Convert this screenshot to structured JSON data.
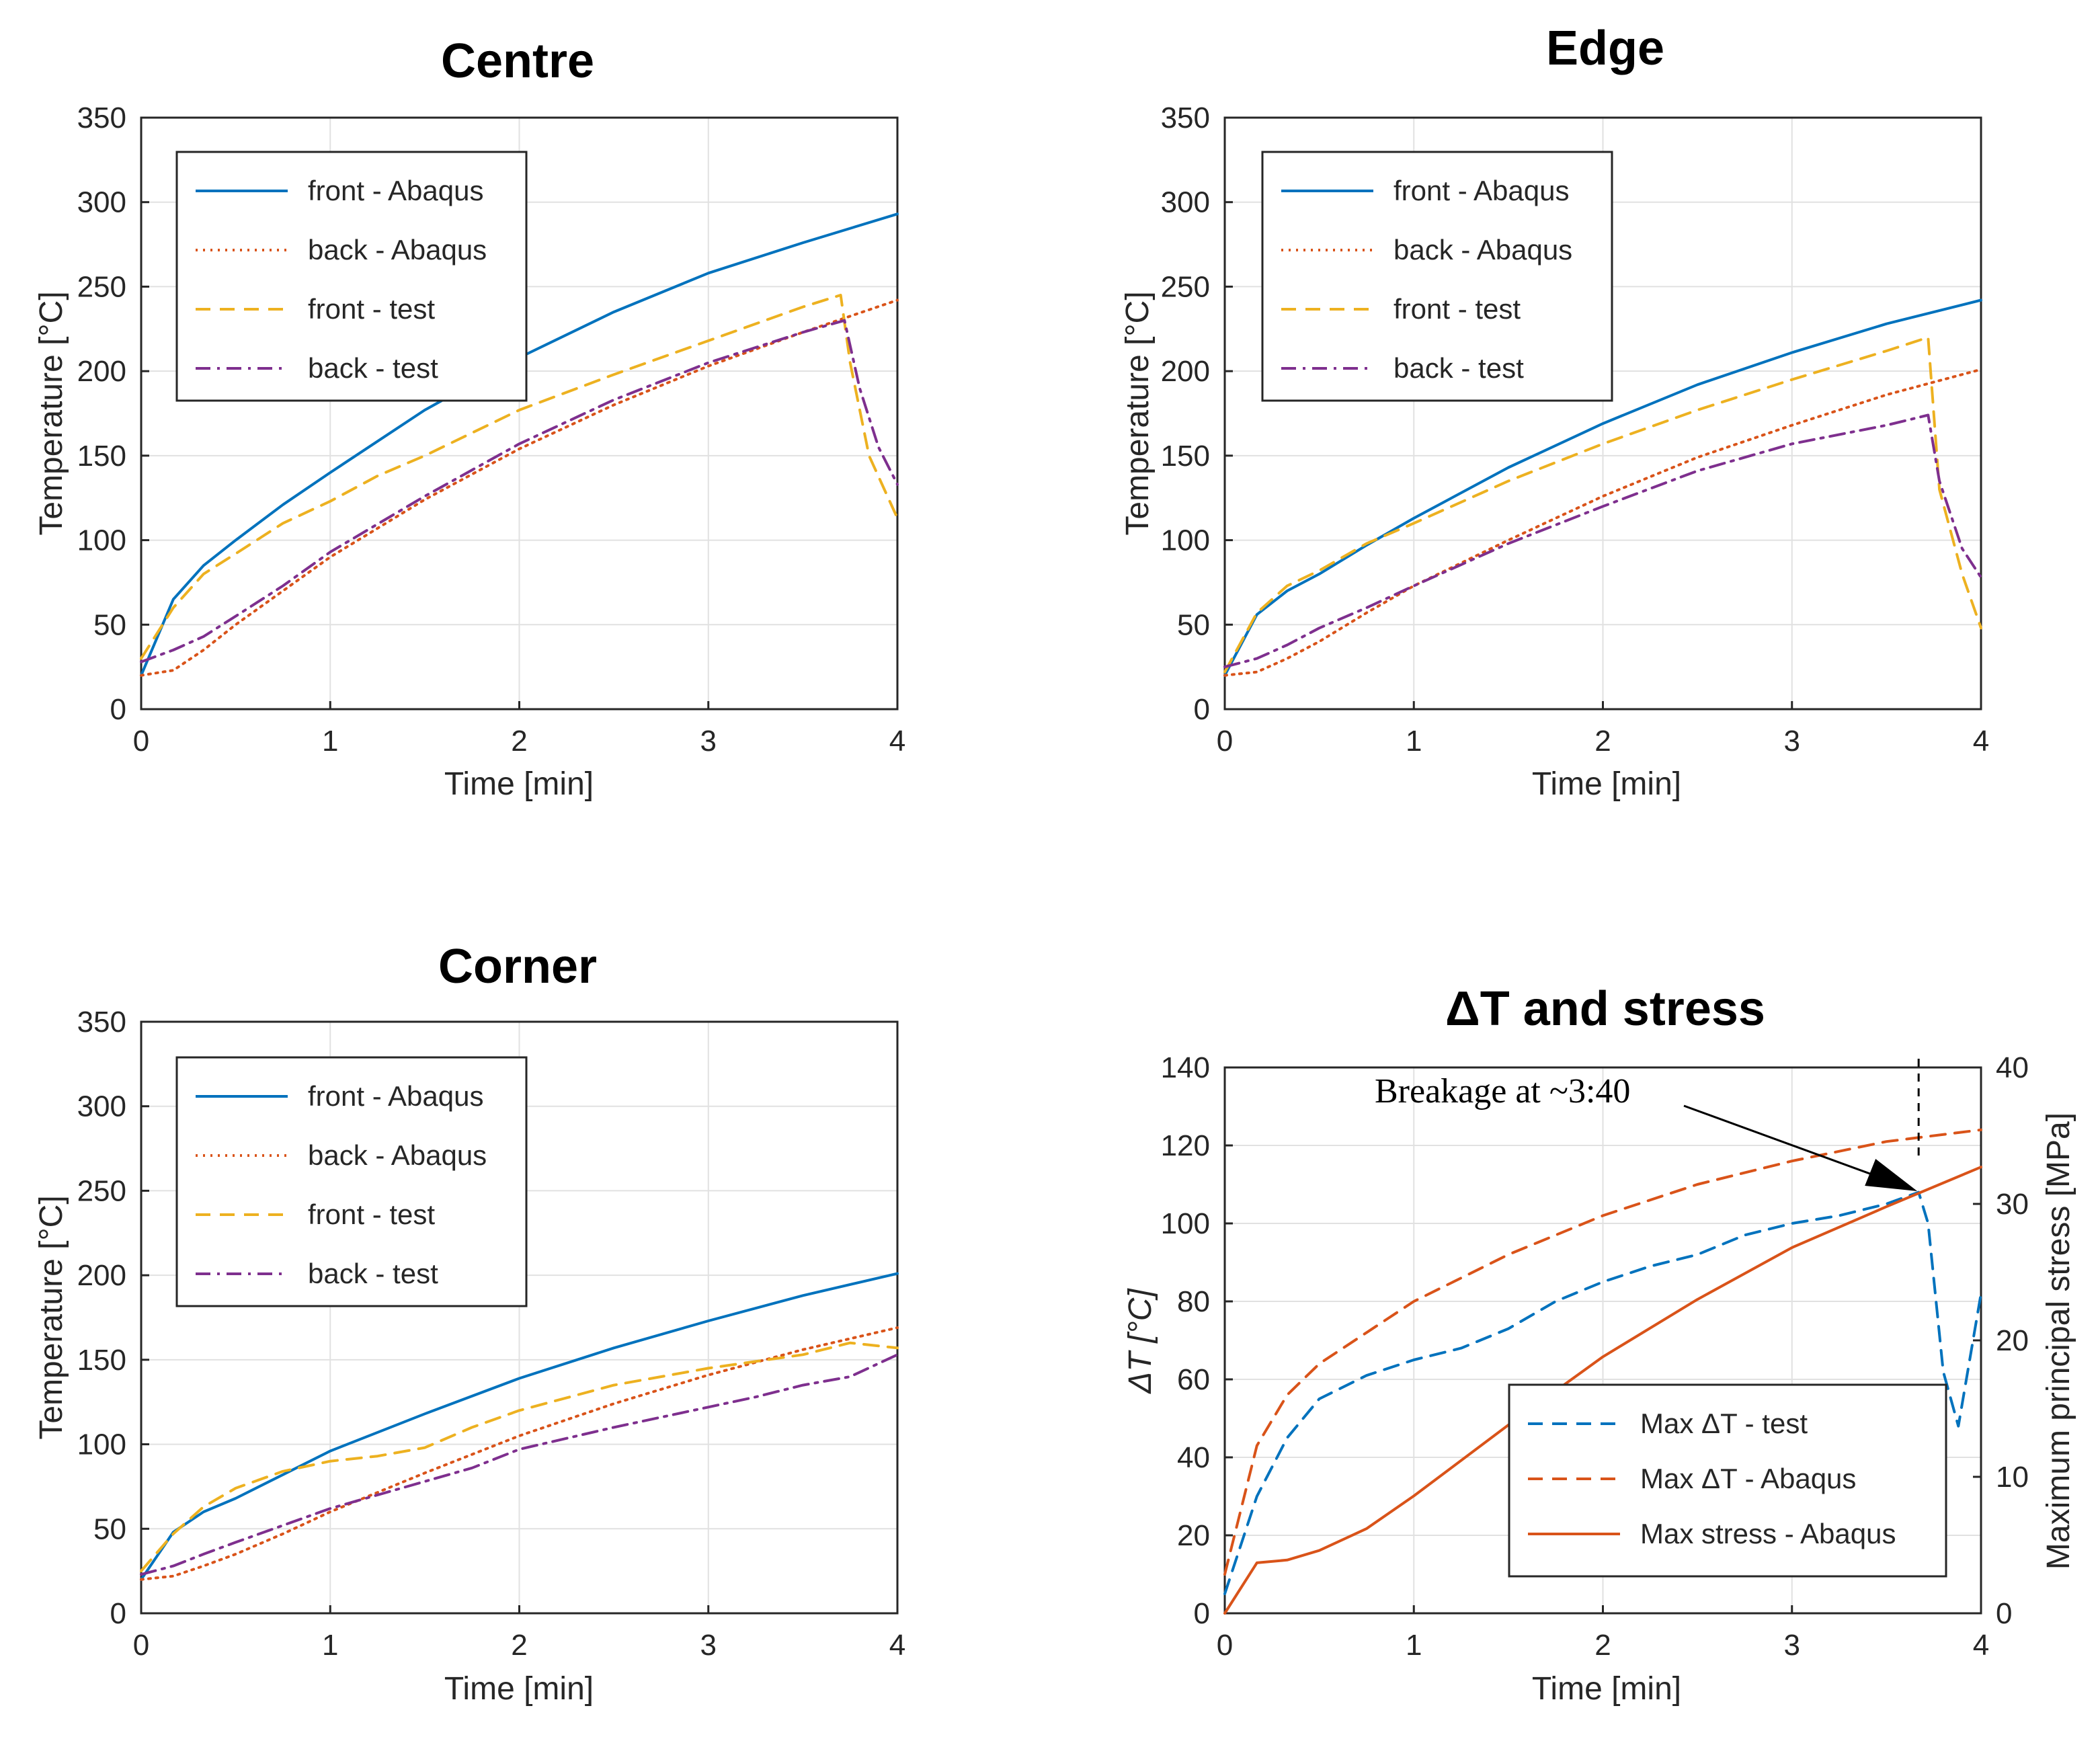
{
  "colors": {
    "blue": "#0072BD",
    "orange": "#D95319",
    "yellow": "#EDB120",
    "purple": "#7E2F8E",
    "grid": "#e1e1e1",
    "axis": "#262626"
  },
  "chart_data": [
    {
      "type": "line",
      "title": "Centre",
      "xlabel": "Time [min]",
      "ylabel": "Temperature [°C]",
      "xlim": [
        0,
        4
      ],
      "ylim": [
        0,
        350
      ],
      "xticks": [
        0,
        1,
        2,
        3,
        4
      ],
      "yticks": [
        0,
        50,
        100,
        150,
        200,
        250,
        300,
        350
      ],
      "grid": true,
      "legend_position": "top-left",
      "series": [
        {
          "name": "front - Abaqus",
          "color": "blue",
          "style": "solid",
          "x": [
            0,
            0.17,
            0.33,
            0.5,
            0.75,
            1,
            1.5,
            2,
            2.5,
            3,
            3.5,
            4
          ],
          "y": [
            20,
            65,
            85,
            100,
            121,
            140,
            177,
            208,
            235,
            258,
            276,
            293
          ]
        },
        {
          "name": "back - Abaqus",
          "color": "orange",
          "style": "dotted",
          "x": [
            0,
            0.17,
            0.33,
            0.5,
            0.75,
            1,
            1.5,
            2,
            2.5,
            3,
            3.5,
            4
          ],
          "y": [
            20,
            23,
            35,
            50,
            70,
            90,
            124,
            154,
            180,
            203,
            223,
            242
          ]
        },
        {
          "name": "front - test",
          "color": "yellow",
          "style": "dashed",
          "x": [
            0,
            0.17,
            0.33,
            0.5,
            0.75,
            1,
            1.25,
            1.5,
            2,
            2.5,
            3,
            3.5,
            3.7,
            3.75,
            3.85,
            4
          ],
          "y": [
            30,
            60,
            80,
            92,
            110,
            123,
            138,
            150,
            177,
            198,
            218,
            238,
            245,
            205,
            150,
            113
          ]
        },
        {
          "name": "back - test",
          "color": "purple",
          "style": "dashdot",
          "x": [
            0,
            0.17,
            0.33,
            0.5,
            0.75,
            1,
            1.5,
            2,
            2.5,
            3,
            3.5,
            3.72,
            3.8,
            3.9,
            4
          ],
          "y": [
            28,
            35,
            43,
            55,
            73,
            93,
            126,
            157,
            183,
            205,
            223,
            230,
            190,
            155,
            133
          ]
        }
      ]
    },
    {
      "type": "line",
      "title": "Edge",
      "xlabel": "Time [min]",
      "ylabel": "Temperature [°C]",
      "xlim": [
        0,
        4
      ],
      "ylim": [
        0,
        350
      ],
      "xticks": [
        0,
        1,
        2,
        3,
        4
      ],
      "yticks": [
        0,
        50,
        100,
        150,
        200,
        250,
        300,
        350
      ],
      "grid": true,
      "legend_position": "top-left",
      "series": [
        {
          "name": "front - Abaqus",
          "color": "blue",
          "style": "solid",
          "x": [
            0,
            0.17,
            0.33,
            0.5,
            0.75,
            1,
            1.5,
            2,
            2.5,
            3,
            3.5,
            4
          ],
          "y": [
            20,
            56,
            70,
            80,
            97,
            113,
            143,
            169,
            192,
            211,
            228,
            242
          ]
        },
        {
          "name": "back - Abaqus",
          "color": "orange",
          "style": "dotted",
          "x": [
            0,
            0.17,
            0.33,
            0.5,
            0.75,
            1,
            1.5,
            2,
            2.5,
            3,
            3.5,
            4
          ],
          "y": [
            20,
            22,
            30,
            40,
            57,
            73,
            100,
            126,
            149,
            168,
            186,
            201
          ]
        },
        {
          "name": "front - test",
          "color": "yellow",
          "style": "dashed",
          "x": [
            0,
            0.17,
            0.33,
            0.5,
            0.75,
            1,
            1.5,
            2,
            2.5,
            3,
            3.5,
            3.72,
            3.78,
            3.9,
            4
          ],
          "y": [
            22,
            57,
            73,
            82,
            98,
            110,
            135,
            157,
            177,
            195,
            212,
            220,
            130,
            80,
            48
          ]
        },
        {
          "name": "back - test",
          "color": "purple",
          "style": "dashdot",
          "x": [
            0,
            0.17,
            0.33,
            0.5,
            0.75,
            1,
            1.5,
            2,
            2.5,
            3,
            3.5,
            3.72,
            3.78,
            3.9,
            4
          ],
          "y": [
            25,
            30,
            38,
            48,
            60,
            73,
            98,
            120,
            141,
            157,
            168,
            174,
            135,
            95,
            78
          ]
        }
      ]
    },
    {
      "type": "line",
      "title": "Corner",
      "xlabel": "Time [min]",
      "ylabel": "Temperature [°C]",
      "xlim": [
        0,
        4
      ],
      "ylim": [
        0,
        350
      ],
      "xticks": [
        0,
        1,
        2,
        3,
        4
      ],
      "yticks": [
        0,
        50,
        100,
        150,
        200,
        250,
        300,
        350
      ],
      "grid": true,
      "legend_position": "top-left",
      "series": [
        {
          "name": "front - Abaqus",
          "color": "blue",
          "style": "solid",
          "x": [
            0,
            0.17,
            0.33,
            0.5,
            0.75,
            1,
            1.5,
            2,
            2.5,
            3,
            3.5,
            4
          ],
          "y": [
            20,
            48,
            60,
            68,
            82,
            96,
            118,
            139,
            157,
            173,
            188,
            201
          ]
        },
        {
          "name": "back - Abaqus",
          "color": "orange",
          "style": "dotted",
          "x": [
            0,
            0.17,
            0.33,
            0.5,
            0.75,
            1,
            1.5,
            2,
            2.5,
            3,
            3.5,
            4
          ],
          "y": [
            20,
            22,
            28,
            35,
            47,
            60,
            83,
            105,
            124,
            141,
            156,
            169
          ]
        },
        {
          "name": "front - test",
          "color": "yellow",
          "style": "dashed",
          "x": [
            0,
            0.17,
            0.33,
            0.5,
            0.75,
            1,
            1.25,
            1.5,
            1.75,
            2,
            2.5,
            3,
            3.5,
            3.75,
            4
          ],
          "y": [
            25,
            47,
            63,
            74,
            84,
            90,
            93,
            98,
            110,
            120,
            135,
            145,
            153,
            160,
            157
          ]
        },
        {
          "name": "back - test",
          "color": "purple",
          "style": "dashdot",
          "x": [
            0,
            0.17,
            0.33,
            0.5,
            0.75,
            1,
            1.25,
            1.5,
            1.75,
            2,
            2.5,
            3,
            3.25,
            3.5,
            3.75,
            4
          ],
          "y": [
            23,
            28,
            35,
            42,
            52,
            62,
            70,
            78,
            86,
            97,
            110,
            122,
            128,
            135,
            140,
            153
          ]
        }
      ]
    },
    {
      "type": "line",
      "title": "ΔT and stress",
      "xlabel": "Time [min]",
      "ylabel": "ΔT [°C]",
      "ylabel_right": "Maximum principal stress [MPa]",
      "xlim": [
        0,
        4
      ],
      "ylim": [
        0,
        140
      ],
      "ylim_right": [
        0,
        40
      ],
      "xticks": [
        0,
        1,
        2,
        3,
        4
      ],
      "yticks": [
        0,
        20,
        40,
        60,
        80,
        100,
        120,
        140
      ],
      "yticks_right": [
        0,
        10,
        20,
        30,
        40
      ],
      "grid": true,
      "legend_position": "bottom-right",
      "annotation": {
        "text": "Breakage at ~3:40",
        "x": 3.67
      },
      "series": [
        {
          "name": "Max ΔT - test",
          "color": "blue",
          "style": "dashed",
          "axis": "left",
          "x": [
            0,
            0.17,
            0.33,
            0.5,
            0.75,
            1,
            1.25,
            1.5,
            1.75,
            2,
            2.25,
            2.5,
            2.75,
            3,
            3.25,
            3.5,
            3.67,
            3.72,
            3.8,
            3.88,
            4
          ],
          "y": [
            5,
            30,
            45,
            55,
            61,
            65,
            68,
            73,
            80,
            85,
            89,
            92,
            97,
            100,
            102,
            105,
            108,
            100,
            62,
            48,
            82
          ]
        },
        {
          "name": "Max ΔT - Abaqus",
          "color": "orange",
          "style": "dashed",
          "axis": "left",
          "x": [
            0,
            0.17,
            0.33,
            0.5,
            0.75,
            1,
            1.5,
            2,
            2.5,
            3,
            3.5,
            4
          ],
          "y": [
            10,
            43,
            56,
            64,
            72,
            80,
            92,
            102,
            110,
            116,
            121,
            124
          ]
        },
        {
          "name": "Max stress - Abaqus",
          "color": "orange",
          "style": "solid",
          "axis": "right",
          "x": [
            0,
            0.17,
            0.33,
            0.5,
            0.75,
            1,
            1.5,
            2,
            2.5,
            3,
            3.5,
            4
          ],
          "y": [
            0,
            3.7,
            3.9,
            4.6,
            6.2,
            8.6,
            13.8,
            18.8,
            23,
            26.8,
            29.8,
            32.7
          ]
        }
      ]
    }
  ]
}
